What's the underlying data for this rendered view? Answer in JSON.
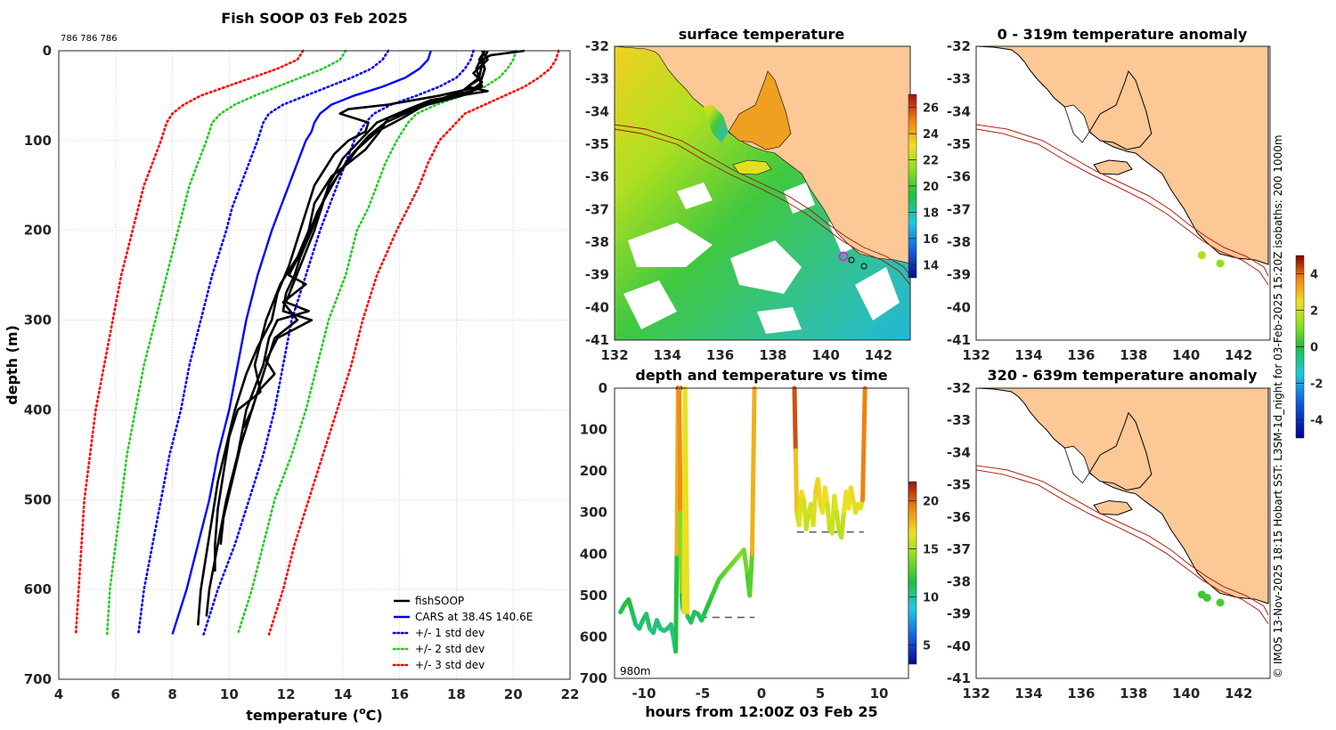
{
  "colors": {
    "land": "#fbc896",
    "ocean_line": "#b02010",
    "black": "#000000"
  },
  "chart_data": [
    {
      "id": "profile",
      "type": "line",
      "title": "Fish SOOP 03 Feb 2025",
      "subtitle": "786 786 786",
      "xlabel_main": "temperature (",
      "xlabel_sup": "o",
      "xlabel_tail": "C)",
      "ylabel": "depth (m)",
      "xlim": [
        4,
        22
      ],
      "ylim": [
        0,
        700
      ],
      "y_inverted": true,
      "xticks": [
        4,
        6,
        8,
        10,
        12,
        14,
        16,
        18,
        20,
        22
      ],
      "yticks": [
        0,
        100,
        200,
        300,
        400,
        500,
        600,
        700
      ],
      "grid": true,
      "legend": {
        "position": "bottom-right",
        "entries": [
          {
            "label": "fishSOOP",
            "color": "#000000",
            "style": "solid"
          },
          {
            "label": "CARS at 38.4S 140.6E",
            "color": "#0000ff",
            "style": "solid"
          },
          {
            "label": "+/- 1 std dev",
            "color": "#0000ff",
            "style": "dotted"
          },
          {
            "label": "+/- 2 std dev",
            "color": "#22cc22",
            "style": "dotted"
          },
          {
            "label": "+/- 3 std dev",
            "color": "#ff0000",
            "style": "dotted"
          }
        ]
      },
      "depth": [
        0,
        10,
        20,
        30,
        40,
        50,
        60,
        70,
        80,
        90,
        100,
        125,
        150,
        175,
        200,
        250,
        300,
        350,
        400,
        450,
        500,
        550,
        600,
        650
      ],
      "series": [
        {
          "name": "CARS",
          "color": "#0000ff",
          "style": "solid",
          "values": [
            17.1,
            17.0,
            16.7,
            16.2,
            15.4,
            14.4,
            13.6,
            13.2,
            13.0,
            12.9,
            12.7,
            12.4,
            12.1,
            11.8,
            11.5,
            11.0,
            10.6,
            10.3,
            10.0,
            9.6,
            9.3,
            8.9,
            8.5,
            8.0
          ]
        },
        {
          "name": "-1 std",
          "color": "#0000ff",
          "style": "dotted",
          "values": [
            15.6,
            15.4,
            15.0,
            14.3,
            13.5,
            12.7,
            11.9,
            11.4,
            11.2,
            11.1,
            11.0,
            10.7,
            10.4,
            10.1,
            9.9,
            9.4,
            9.0,
            8.6,
            8.3,
            7.9,
            7.6,
            7.3,
            7.0,
            6.8
          ]
        },
        {
          "name": "+1 std",
          "color": "#0000ff",
          "style": "dotted",
          "values": [
            18.6,
            18.5,
            18.3,
            18.0,
            17.4,
            16.6,
            15.7,
            15.1,
            14.8,
            14.6,
            14.4,
            14.1,
            13.8,
            13.5,
            13.2,
            12.7,
            12.2,
            11.9,
            11.6,
            11.2,
            10.7,
            10.2,
            9.6,
            9.1
          ]
        },
        {
          "name": "-2 std",
          "color": "#22cc22",
          "style": "dotted",
          "values": [
            14.1,
            13.9,
            13.3,
            12.5,
            11.7,
            10.9,
            10.2,
            9.7,
            9.4,
            9.3,
            9.2,
            8.9,
            8.6,
            8.4,
            8.2,
            7.8,
            7.4,
            7.0,
            6.7,
            6.4,
            6.2,
            6.0,
            5.8,
            5.7
          ]
        },
        {
          "name": "+2 std",
          "color": "#22cc22",
          "style": "dotted",
          "values": [
            20.1,
            20.0,
            19.8,
            19.5,
            19.0,
            18.2,
            17.3,
            16.6,
            16.3,
            16.1,
            15.9,
            15.5,
            15.2,
            14.9,
            14.5,
            14.1,
            13.5,
            13.1,
            12.7,
            12.2,
            11.6,
            11.2,
            10.8,
            10.3
          ]
        },
        {
          "name": "-3 std",
          "color": "#ff0000",
          "style": "dotted",
          "values": [
            12.6,
            12.4,
            11.7,
            10.8,
            9.9,
            9.0,
            8.4,
            8.0,
            7.8,
            7.7,
            7.6,
            7.3,
            7.0,
            6.8,
            6.6,
            6.2,
            5.9,
            5.6,
            5.3,
            5.1,
            4.9,
            4.8,
            4.7,
            4.6
          ]
        },
        {
          "name": "+3 std",
          "color": "#ff0000",
          "style": "dotted",
          "values": [
            21.6,
            21.5,
            21.3,
            20.9,
            20.4,
            19.7,
            19.0,
            18.3,
            18.0,
            17.7,
            17.4,
            17.0,
            16.7,
            16.3,
            15.9,
            15.2,
            14.7,
            14.3,
            13.8,
            13.3,
            12.8,
            12.3,
            11.9,
            11.4
          ]
        }
      ],
      "casts": [
        {
          "depth": [
            0,
            5,
            10,
            20,
            30,
            40,
            50,
            60,
            65,
            70,
            80,
            90,
            100,
            115,
            130,
            150,
            180,
            210,
            240,
            270,
            300,
            330,
            360,
            400,
            440,
            480,
            520,
            560,
            600,
            640
          ],
          "values": [
            20.4,
            19.2,
            18.9,
            19.0,
            18.9,
            18.8,
            17.4,
            15.6,
            14.2,
            13.9,
            14.9,
            14.8,
            14.2,
            13.7,
            13.4,
            13.0,
            12.7,
            12.4,
            12.1,
            11.7,
            11.5,
            11.0,
            10.6,
            10.2,
            9.9,
            9.6,
            9.4,
            9.2,
            9.0,
            8.9
          ]
        },
        {
          "depth": [
            0,
            10,
            20,
            30,
            40,
            45,
            55,
            65,
            80,
            100,
            120,
            150,
            200,
            240,
            280,
            290,
            300,
            320,
            350,
            400,
            450,
            500,
            550,
            600,
            630
          ],
          "values": [
            19.0,
            18.8,
            19.0,
            18.9,
            18.4,
            19.1,
            17.1,
            16.3,
            15.2,
            14.6,
            14.0,
            13.5,
            13.0,
            12.5,
            12.0,
            12.8,
            11.7,
            11.4,
            11.2,
            10.6,
            10.3,
            9.9,
            9.6,
            9.3,
            9.2
          ]
        },
        {
          "depth": [
            0,
            10,
            25,
            35,
            45,
            55,
            65,
            75,
            90,
            110,
            140,
            170,
            200,
            230,
            260,
            300,
            350,
            380,
            400,
            430,
            470,
            510,
            550,
            580
          ],
          "values": [
            18.9,
            19.1,
            18.6,
            18.9,
            18.5,
            17.3,
            16.5,
            15.6,
            15.3,
            14.8,
            13.6,
            13.0,
            12.8,
            12.4,
            11.8,
            11.3,
            10.9,
            11.1,
            10.3,
            10.0,
            9.8,
            9.6,
            9.5,
            9.5
          ]
        },
        {
          "depth": [
            0,
            15,
            30,
            45,
            60,
            75,
            90,
            110,
            140,
            180,
            220,
            250,
            260,
            280,
            300,
            320,
            340,
            360,
            380,
            410,
            440,
            480,
            520,
            550
          ],
          "values": [
            19.1,
            18.9,
            18.8,
            18.2,
            16.9,
            16.1,
            15.2,
            14.5,
            13.8,
            13.1,
            12.6,
            12.1,
            12.7,
            11.9,
            12.4,
            11.6,
            11.4,
            11.2,
            11.0,
            10.7,
            10.4,
            10.1,
            9.8,
            9.7
          ]
        },
        {
          "depth": [
            0,
            20,
            40,
            50,
            60,
            70,
            80,
            95,
            120,
            160,
            200,
            230,
            250,
            270,
            290,
            300,
            320,
            345,
            360,
            380,
            400,
            420
          ],
          "values": [
            19.0,
            18.7,
            18.9,
            18.2,
            17.0,
            16.2,
            15.5,
            14.9,
            14.2,
            13.4,
            12.9,
            12.5,
            12.3,
            12.0,
            11.9,
            12.9,
            11.7,
            11.3,
            11.6,
            11.0,
            10.8,
            10.5
          ]
        }
      ]
    },
    {
      "id": "sst_map",
      "type": "heatmap",
      "title": "surface temperature",
      "xlim": [
        132,
        143.2
      ],
      "ylim": [
        -41,
        -32
      ],
      "xticks": [
        132,
        134,
        136,
        138,
        140,
        142
      ],
      "yticks": [
        -32,
        -33,
        -34,
        -35,
        -36,
        -37,
        -38,
        -39,
        -40,
        -41
      ],
      "colorbar_ticks": [
        14,
        16,
        18,
        20,
        22,
        24,
        26
      ],
      "colorbar_range": [
        13,
        27
      ]
    },
    {
      "id": "time_series",
      "type": "scatter",
      "title": "depth and temperature vs time",
      "xlabel": "hours from 12:00Z 03 Feb 25",
      "xlim": [
        -12.5,
        12.5
      ],
      "ylim": [
        0,
        700
      ],
      "y_inverted": true,
      "xticks": [
        -10,
        -5,
        0,
        5,
        10
      ],
      "yticks": [
        0,
        100,
        200,
        300,
        400,
        500,
        600,
        700
      ],
      "annotation": "980m",
      "colorbar_ticks": [
        5,
        10,
        15,
        20
      ],
      "colorbar_range": [
        3,
        22
      ],
      "bottom_markers": [
        {
          "x": [
            -6.3,
            -0.6
          ],
          "depth": 553
        },
        {
          "x": [
            3.0,
            8.7
          ],
          "depth": 347
        }
      ],
      "segments": [
        {
          "t": [
            -12,
            -11.6,
            -11.3,
            -11.0,
            -10.7,
            -10.4,
            -10.1,
            -9.8,
            -9.5,
            -9.2,
            -8.9,
            -8.6,
            -8.3,
            -8.0,
            -7.7,
            -7.5,
            -7.3,
            -7.2,
            -7.1,
            -7.0,
            -6.9
          ],
          "d": [
            540,
            520,
            510,
            540,
            570,
            580,
            560,
            545,
            580,
            590,
            560,
            580,
            585,
            580,
            570,
            600,
            635,
            400,
            0,
            0,
            0
          ]
        },
        {
          "t": [
            -7.0,
            -6.9,
            -6.8,
            -6.7,
            -6.6,
            -6.5
          ],
          "d": [
            0,
            300,
            500,
            530,
            540,
            0
          ]
        },
        {
          "t": [
            -6.5,
            -6.3,
            -6.0,
            -5.7,
            -5.4,
            -5.1,
            -4.8,
            -4.5,
            -4.2,
            -3.9,
            -3.6,
            -3.3,
            -3.0,
            -2.7,
            -2.4,
            -2.1,
            -1.8,
            -1.5,
            -1.2,
            -1.0,
            -0.8,
            -0.6
          ],
          "d": [
            0,
            550,
            565,
            540,
            545,
            560,
            540,
            520,
            500,
            480,
            460,
            450,
            440,
            430,
            420,
            410,
            400,
            390,
            450,
            500,
            400,
            0
          ]
        },
        {
          "t": [
            2.8,
            2.9,
            3.0,
            3.2,
            3.4,
            3.6,
            3.8,
            4.0,
            4.2,
            4.4,
            4.6,
            4.8,
            5.0,
            5.2,
            5.4,
            5.6,
            5.8,
            6.0,
            6.2,
            6.4,
            6.6,
            6.8,
            7.0,
            7.2,
            7.4,
            7.6,
            7.8,
            8.0,
            8.2,
            8.4,
            8.6,
            8.8
          ],
          "d": [
            0,
            150,
            300,
            330,
            250,
            270,
            340,
            300,
            280,
            330,
            250,
            220,
            280,
            300,
            240,
            280,
            340,
            350,
            260,
            300,
            345,
            360,
            300,
            250,
            290,
            240,
            270,
            300,
            280,
            290,
            270,
            0
          ]
        }
      ]
    },
    {
      "id": "anomaly_0_319",
      "type": "scatter",
      "title": "0 - 319m temperature anomaly",
      "xlim": [
        132,
        143.2
      ],
      "ylim": [
        -41,
        -32
      ],
      "xticks": [
        132,
        134,
        136,
        138,
        140,
        142
      ],
      "yticks": [
        -32,
        -33,
        -34,
        -35,
        -36,
        -37,
        -38,
        -39,
        -40,
        -41
      ],
      "points": [
        {
          "lon": 140.6,
          "lat": -38.4,
          "anomaly": 1.6
        },
        {
          "lon": 141.3,
          "lat": -38.65,
          "anomaly": 1.2
        }
      ]
    },
    {
      "id": "anomaly_320_639",
      "type": "scatter",
      "title": "320 - 639m temperature anomaly",
      "xlim": [
        132,
        143.2
      ],
      "ylim": [
        -41,
        -32
      ],
      "xticks": [
        132,
        134,
        136,
        138,
        140,
        142
      ],
      "yticks": [
        -32,
        -33,
        -34,
        -35,
        -36,
        -37,
        -38,
        -39,
        -40,
        -41
      ],
      "colorbar_ticks": [
        -4,
        -2,
        0,
        2,
        4
      ],
      "colorbar_range": [
        -5,
        5
      ],
      "points": [
        {
          "lon": 140.6,
          "lat": -38.4,
          "anomaly": 0.3
        },
        {
          "lon": 140.8,
          "lat": -38.5,
          "anomaly": 0.3
        },
        {
          "lon": 141.3,
          "lat": -38.65,
          "anomaly": 0.4
        }
      ]
    }
  ],
  "credit": "© IMOS 13-Nov-2025 18:15 Hobart SST: L3SM-1d_night for 03-Feb-2025 15:20Z isobaths: 200  1000m"
}
